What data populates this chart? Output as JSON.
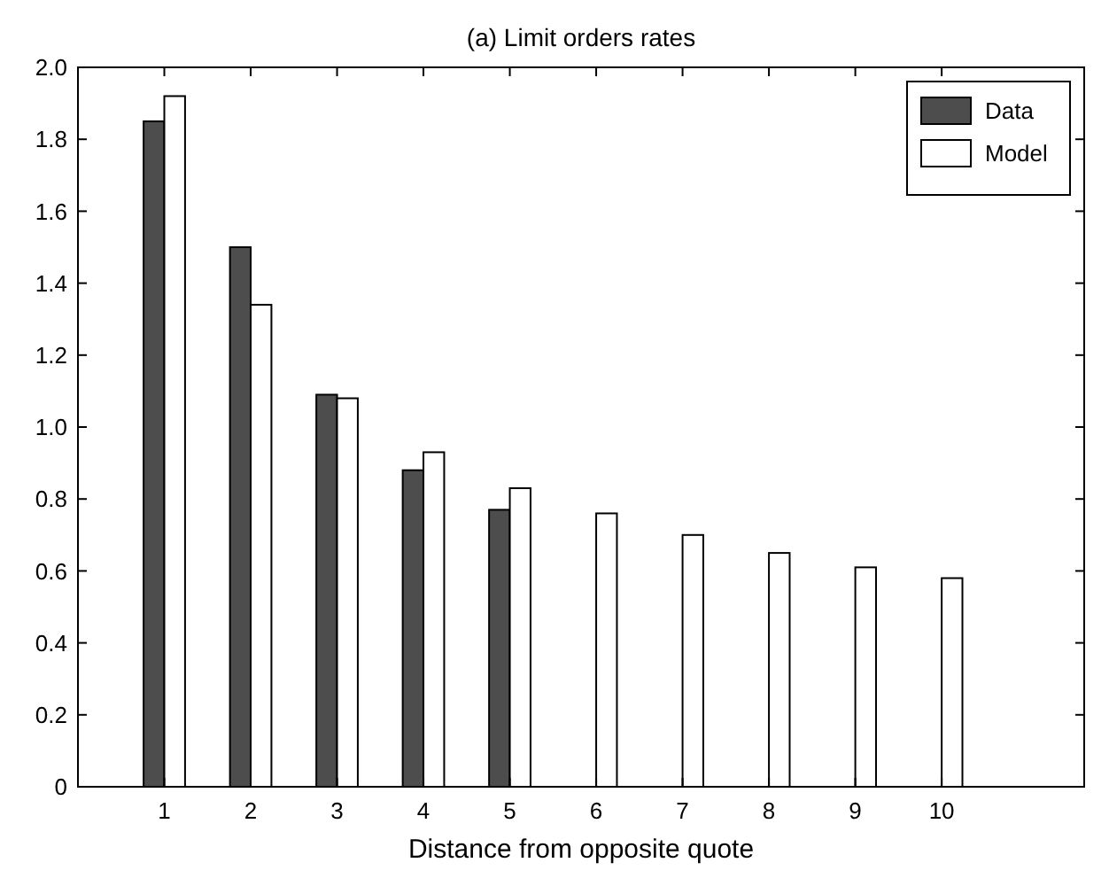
{
  "chart_data": {
    "type": "bar",
    "title": "(a) Limit orders rates",
    "xlabel": "Distance from opposite quote",
    "x": [
      1,
      2,
      3,
      4,
      5,
      6,
      7,
      8,
      9,
      10
    ],
    "series": [
      {
        "name": "Data",
        "color": "#4d4d4d",
        "values": [
          1.85,
          1.5,
          1.09,
          0.88,
          0.77,
          0,
          0,
          0,
          0,
          0
        ]
      },
      {
        "name": "Model",
        "color": "#ffffff",
        "values": [
          1.92,
          1.34,
          1.08,
          0.93,
          0.83,
          0.76,
          0.7,
          0.65,
          0.61,
          0.58
        ]
      }
    ],
    "xlim": [
      0,
      11.65
    ],
    "xticks": [
      1,
      2,
      3,
      4,
      5,
      6,
      7,
      8,
      9,
      10
    ],
    "ylim": [
      0,
      2
    ],
    "yticks": [
      0,
      0.2,
      0.4,
      0.6,
      0.8,
      {
        "value": 1,
        "label": "1.0"
      },
      1.2,
      1.4,
      1.6,
      1.8,
      {
        "value": 2,
        "label": "2.0"
      }
    ],
    "grid": false,
    "legend": "top right"
  }
}
